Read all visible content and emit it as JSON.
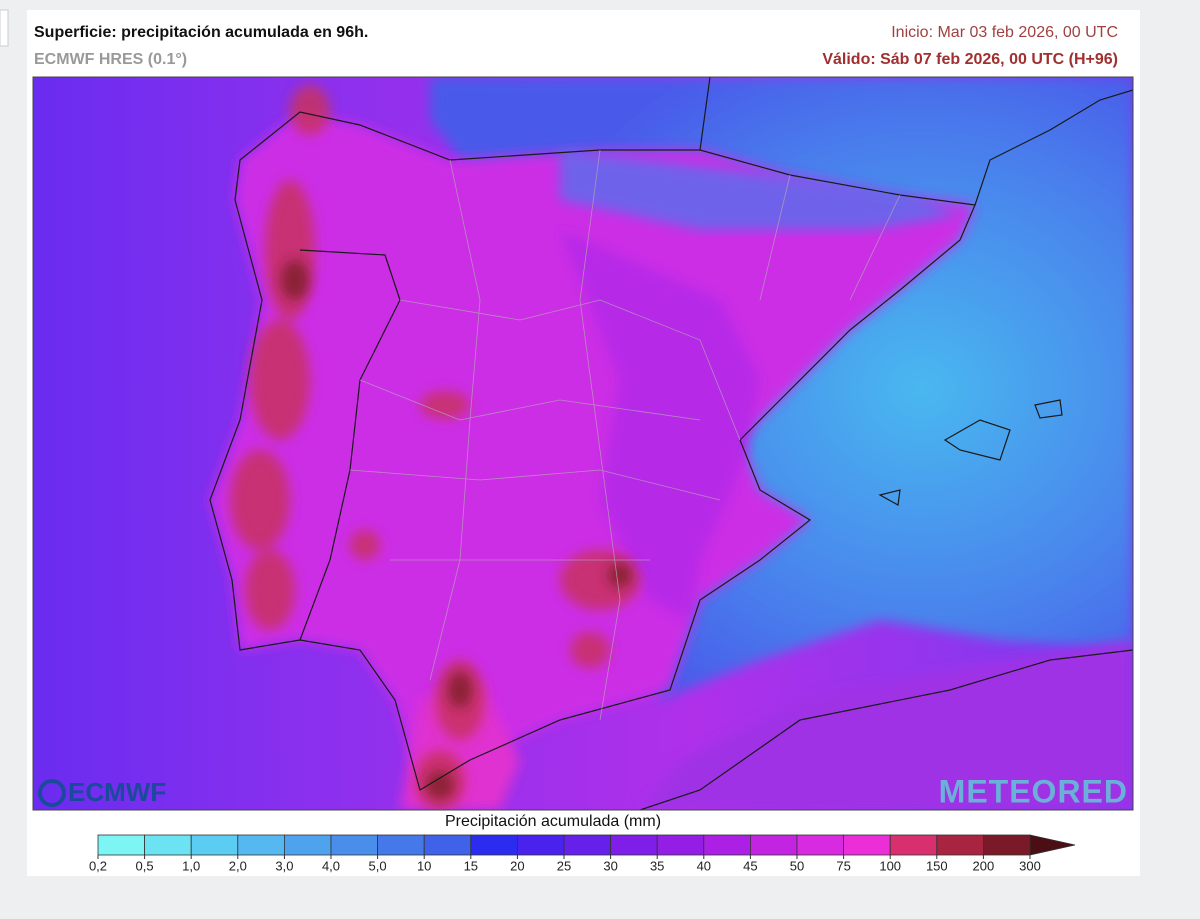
{
  "header": {
    "title": "Superficie: precipitación acumulada en 96h.",
    "subtitle": "ECMWF HRES (0.1°)",
    "init": "Inicio: Mar 03 feb 2026, 00 UTC",
    "valid": "Válido: Sáb 07 feb 2026, 00 UTC (H+96)"
  },
  "logos": {
    "left": "ECMWF",
    "right": "METEORED"
  },
  "legend": {
    "title": "Precipitación acumulada (mm)",
    "ticks": [
      {
        "value": 0.2,
        "label": "0,2"
      },
      {
        "value": 0.5,
        "label": "0,5"
      },
      {
        "value": 1,
        "label": "1,0"
      },
      {
        "value": 2,
        "label": "2,0"
      },
      {
        "value": 3,
        "label": "3,0"
      },
      {
        "value": 4,
        "label": "4,0"
      },
      {
        "value": 5,
        "label": "5,0"
      },
      10,
      15,
      20,
      25,
      30,
      35,
      40,
      45,
      50,
      75,
      100,
      150,
      200,
      300
    ],
    "colors": [
      "#7df5f5",
      "#6ce3f3",
      "#5ccdf2",
      "#56b8f0",
      "#4fa3ee",
      "#4a8eec",
      "#4579ea",
      "#3f62e8",
      "#2c2cf0",
      "#4a22ee",
      "#6520ea",
      "#7e1ee8",
      "#951ee6",
      "#ab20e4",
      "#c224e2",
      "#d82ae0",
      "#ec2ed8",
      "#d8306e",
      "#a82440",
      "#7a1a28"
    ],
    "over_color": "#4a0e14"
  }
}
